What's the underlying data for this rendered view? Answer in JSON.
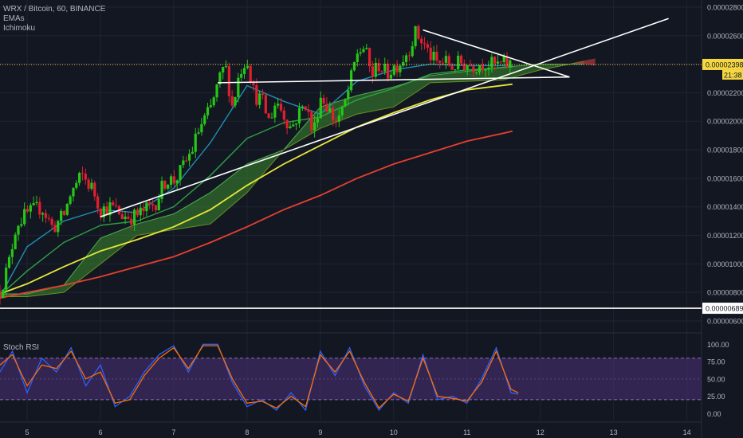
{
  "header": {
    "symbol_title": "WRX / Bitcoin, 60, BINANCE",
    "indicators": [
      "EMAs",
      "Ichimoku"
    ]
  },
  "stoch": {
    "title": "Stoch RSI"
  },
  "price_badge": {
    "value": "0.00002398",
    "countdown": "21:38"
  },
  "hline_badge": {
    "value": "0.00000689"
  },
  "chart_data": [
    {
      "type": "candlestick",
      "title": "WRX / Bitcoin, 60, BINANCE",
      "y_axis": {
        "ticks": [
          "0.00002800",
          "0.00002600",
          "0.00002400",
          "0.00002200",
          "0.00002000",
          "0.00001800",
          "0.00001600",
          "0.00001400",
          "0.00001200",
          "0.00001000",
          "0.00000800",
          "0.00000600"
        ],
        "ylim": [
          6e-06,
          2.85e-05
        ]
      },
      "x_axis": {
        "ticks": [
          "5",
          "6",
          "7",
          "8",
          "9",
          "10",
          "11",
          "12",
          "13",
          "14"
        ],
        "xlim": [
          4.63,
          14.2
        ]
      },
      "last_price": 2.398e-05,
      "horizontal_line": 6.89e-06,
      "close_path": [
        [
          4.63,
          8.1e-06
        ],
        [
          4.75,
          1e-05
        ],
        [
          4.85,
          1.28e-05
        ],
        [
          5.0,
          1.35e-05
        ],
        [
          5.2,
          1.4e-05
        ],
        [
          5.35,
          1.25e-05
        ],
        [
          5.5,
          1.34e-05
        ],
        [
          5.6,
          1.5e-05
        ],
        [
          5.75,
          1.62e-05
        ],
        [
          5.9,
          1.52e-05
        ],
        [
          6.0,
          1.38e-05
        ],
        [
          6.15,
          1.4e-05
        ],
        [
          6.3,
          1.34e-05
        ],
        [
          6.45,
          1.33e-05
        ],
        [
          6.6,
          1.37e-05
        ],
        [
          6.75,
          1.43e-05
        ],
        [
          6.9,
          1.6e-05
        ],
        [
          7.0,
          1.58e-05
        ],
        [
          7.1,
          1.65e-05
        ],
        [
          7.25,
          1.8e-05
        ],
        [
          7.35,
          1.95e-05
        ],
        [
          7.5,
          2.08e-05
        ],
        [
          7.6,
          2.25e-05
        ],
        [
          7.7,
          2.4e-05
        ],
        [
          7.8,
          2.1e-05
        ],
        [
          7.9,
          2.35e-05
        ],
        [
          8.0,
          2.45e-05
        ],
        [
          8.1,
          2.18e-05
        ],
        [
          8.2,
          2.15e-05
        ],
        [
          8.3,
          2e-05
        ],
        [
          8.4,
          2.15e-05
        ],
        [
          8.5,
          2.05e-05
        ],
        [
          8.6,
          1.95e-05
        ],
        [
          8.7,
          2.05e-05
        ],
        [
          8.8,
          2.13e-05
        ],
        [
          8.9,
          1.9e-05
        ],
        [
          9.0,
          2.18e-05
        ],
        [
          9.1,
          2.1e-05
        ],
        [
          9.2,
          2e-05
        ],
        [
          9.3,
          2.06e-05
        ],
        [
          9.4,
          2.25e-05
        ],
        [
          9.5,
          2.48e-05
        ],
        [
          9.6,
          2.52e-05
        ],
        [
          9.7,
          2.32e-05
        ],
        [
          9.8,
          2.4e-05
        ],
        [
          9.9,
          2.33e-05
        ],
        [
          10.0,
          2.38e-05
        ],
        [
          10.1,
          2.42e-05
        ],
        [
          10.2,
          2.5e-05
        ],
        [
          10.3,
          2.62e-05
        ],
        [
          10.4,
          2.55e-05
        ],
        [
          10.5,
          2.46e-05
        ],
        [
          10.6,
          2.4e-05
        ],
        [
          10.7,
          2.42e-05
        ],
        [
          10.8,
          2.38e-05
        ],
        [
          10.9,
          2.41e-05
        ],
        [
          11.0,
          2.4e-05
        ],
        [
          11.1,
          2.39e-05
        ],
        [
          11.2,
          2.41e-05
        ],
        [
          11.3,
          2.4e-05
        ],
        [
          11.4,
          2.39e-05
        ],
        [
          11.5,
          2.4e-05
        ],
        [
          11.62,
          2.398e-05
        ]
      ],
      "ema_fast": [
        [
          4.63,
          7.7e-06
        ],
        [
          5.0,
          1.12e-05
        ],
        [
          5.5,
          1.3e-05
        ],
        [
          6.0,
          1.38e-05
        ],
        [
          6.5,
          1.36e-05
        ],
        [
          7.0,
          1.53e-05
        ],
        [
          7.5,
          1.85e-05
        ],
        [
          8.0,
          2.25e-05
        ],
        [
          8.5,
          2.14e-05
        ],
        [
          9.0,
          2.05e-05
        ],
        [
          9.5,
          2.28e-05
        ],
        [
          10.0,
          2.36e-05
        ],
        [
          10.5,
          2.4e-05
        ],
        [
          11.0,
          2.39e-05
        ],
        [
          11.62,
          2.39e-05
        ]
      ],
      "ema_mid": [
        [
          4.63,
          7.8e-06
        ],
        [
          5.0,
          9.5e-06
        ],
        [
          5.5,
          1.15e-05
        ],
        [
          6.0,
          1.27e-05
        ],
        [
          6.5,
          1.3e-05
        ],
        [
          7.0,
          1.4e-05
        ],
        [
          7.5,
          1.62e-05
        ],
        [
          8.0,
          1.88e-05
        ],
        [
          8.5,
          1.99e-05
        ],
        [
          9.0,
          2.03e-05
        ],
        [
          9.5,
          2.15e-05
        ],
        [
          10.0,
          2.23e-05
        ],
        [
          10.5,
          2.33e-05
        ],
        [
          11.0,
          2.36e-05
        ],
        [
          11.62,
          2.38e-05
        ]
      ],
      "ema_slow_yellow": [
        [
          4.63,
          7.9e-06
        ],
        [
          5.0,
          8.6e-06
        ],
        [
          5.5,
          9.8e-06
        ],
        [
          6.0,
          1.09e-05
        ],
        [
          6.5,
          1.17e-05
        ],
        [
          7.0,
          1.26e-05
        ],
        [
          7.5,
          1.38e-05
        ],
        [
          8.0,
          1.55e-05
        ],
        [
          8.5,
          1.7e-05
        ],
        [
          9.0,
          1.83e-05
        ],
        [
          9.5,
          1.96e-05
        ],
        [
          10.0,
          2.06e-05
        ],
        [
          10.5,
          2.15e-05
        ],
        [
          11.0,
          2.22e-05
        ],
        [
          11.62,
          2.26e-05
        ]
      ],
      "ema_slowest_red": [
        [
          4.63,
          7.6e-06
        ],
        [
          5.0,
          8e-06
        ],
        [
          5.5,
          8.5e-06
        ],
        [
          6.0,
          9.1e-06
        ],
        [
          6.5,
          9.8e-06
        ],
        [
          7.0,
          1.05e-05
        ],
        [
          7.5,
          1.15e-05
        ],
        [
          8.0,
          1.26e-05
        ],
        [
          8.5,
          1.38e-05
        ],
        [
          9.0,
          1.48e-05
        ],
        [
          9.5,
          1.6e-05
        ],
        [
          10.0,
          1.7e-05
        ],
        [
          10.5,
          1.78e-05
        ],
        [
          11.0,
          1.86e-05
        ],
        [
          11.62,
          1.93e-05
        ]
      ],
      "cloud_a": [
        [
          4.63,
          7.9e-06
        ],
        [
          5.0,
          7.9e-06
        ],
        [
          5.5,
          8.5e-06
        ],
        [
          6.0,
          1.18e-05
        ],
        [
          6.5,
          1.28e-05
        ],
        [
          7.0,
          1.35e-05
        ],
        [
          7.5,
          1.5e-05
        ],
        [
          8.0,
          1.7e-05
        ],
        [
          8.5,
          1.8e-05
        ],
        [
          9.0,
          2.1e-05
        ],
        [
          9.5,
          2.18e-05
        ],
        [
          10.0,
          2.24e-05
        ],
        [
          10.5,
          2.32e-05
        ],
        [
          11.0,
          2.35e-05
        ],
        [
          11.5,
          2.38e-05
        ],
        [
          12.0,
          2.4e-05
        ],
        [
          12.6,
          2.4e-05
        ]
      ],
      "cloud_b": [
        [
          4.63,
          7.7e-06
        ],
        [
          5.0,
          7.7e-06
        ],
        [
          5.5,
          8e-06
        ],
        [
          6.0,
          1e-05
        ],
        [
          6.5,
          1.2e-05
        ],
        [
          7.0,
          1.24e-05
        ],
        [
          7.5,
          1.28e-05
        ],
        [
          8.0,
          1.5e-05
        ],
        [
          8.5,
          1.8e-05
        ],
        [
          9.0,
          1.95e-05
        ],
        [
          9.5,
          2.05e-05
        ],
        [
          10.0,
          2.1e-05
        ],
        [
          10.5,
          2.27e-05
        ],
        [
          11.0,
          2.28e-05
        ],
        [
          11.5,
          2.29e-05
        ],
        [
          12.0,
          2.36e-05
        ],
        [
          12.6,
          2.42e-05
        ]
      ],
      "trendlines": [
        {
          "from": [
            6.0,
            1.33e-05
          ],
          "to": [
            13.75,
            2.72e-05
          ]
        },
        {
          "from": [
            7.6,
            2.27e-05
          ],
          "to": [
            12.4,
            2.31e-05
          ]
        },
        {
          "from": [
            10.4,
            2.64e-05
          ],
          "to": [
            12.4,
            2.31e-05
          ]
        }
      ]
    },
    {
      "type": "line",
      "title": "Stoch RSI",
      "y_axis": {
        "ticks": [
          "100.00",
          "75.00",
          "50.00",
          "25.00",
          "0.00"
        ],
        "ylim": [
          -10,
          105
        ]
      },
      "bands": [
        20,
        80
      ],
      "series": [
        {
          "values": [
            [
              4.63,
              60
            ],
            [
              4.8,
              90
            ],
            [
              5.0,
              30
            ],
            [
              5.2,
              80
            ],
            [
              5.4,
              60
            ],
            [
              5.6,
              95
            ],
            [
              5.8,
              40
            ],
            [
              6.0,
              70
            ],
            [
              6.2,
              10
            ],
            [
              6.4,
              25
            ],
            [
              6.6,
              60
            ],
            [
              6.8,
              85
            ],
            [
              7.0,
              98
            ],
            [
              7.2,
              60
            ],
            [
              7.4,
              100
            ],
            [
              7.6,
              100
            ],
            [
              7.8,
              45
            ],
            [
              8.0,
              10
            ],
            [
              8.2,
              20
            ],
            [
              8.4,
              5
            ],
            [
              8.6,
              30
            ],
            [
              8.8,
              5
            ],
            [
              9.0,
              90
            ],
            [
              9.2,
              55
            ],
            [
              9.4,
              95
            ],
            [
              9.6,
              40
            ],
            [
              9.8,
              5
            ],
            [
              10.0,
              30
            ],
            [
              10.2,
              15
            ],
            [
              10.4,
              85
            ],
            [
              10.6,
              20
            ],
            [
              10.8,
              25
            ],
            [
              11.0,
              15
            ],
            [
              11.2,
              50
            ],
            [
              11.4,
              95
            ],
            [
              11.6,
              30
            ],
            [
              11.7,
              28
            ]
          ]
        },
        {
          "values": [
            [
              4.63,
              70
            ],
            [
              4.8,
              85
            ],
            [
              5.0,
              40
            ],
            [
              5.2,
              70
            ],
            [
              5.4,
              65
            ],
            [
              5.6,
              90
            ],
            [
              5.8,
              50
            ],
            [
              6.0,
              60
            ],
            [
              6.2,
              15
            ],
            [
              6.4,
              20
            ],
            [
              6.6,
              55
            ],
            [
              6.8,
              80
            ],
            [
              7.0,
              95
            ],
            [
              7.2,
              65
            ],
            [
              7.4,
              98
            ],
            [
              7.6,
              98
            ],
            [
              7.8,
              50
            ],
            [
              8.0,
              15
            ],
            [
              8.2,
              18
            ],
            [
              8.4,
              8
            ],
            [
              8.6,
              25
            ],
            [
              8.8,
              10
            ],
            [
              9.0,
              85
            ],
            [
              9.2,
              60
            ],
            [
              9.4,
              90
            ],
            [
              9.6,
              45
            ],
            [
              9.8,
              8
            ],
            [
              10.0,
              28
            ],
            [
              10.2,
              18
            ],
            [
              10.4,
              80
            ],
            [
              10.6,
              25
            ],
            [
              10.8,
              22
            ],
            [
              11.0,
              18
            ],
            [
              11.2,
              45
            ],
            [
              11.4,
              90
            ],
            [
              11.6,
              35
            ],
            [
              11.7,
              30
            ]
          ]
        }
      ]
    }
  ],
  "colors": {
    "background": "#131722",
    "bull": "#26c717",
    "bear": "#e01f2f",
    "ema_fast": "#1f8fb5",
    "ema_mid": "#2ea043",
    "ema_slow": "#e6e63a",
    "ema_slowest": "#e5402f",
    "cloud": "#3d8a2e",
    "trendline": "#ffffff",
    "stoch_k": "#2962ff",
    "stoch_d": "#ff6d00",
    "stoch_band": "#4a2f73"
  }
}
